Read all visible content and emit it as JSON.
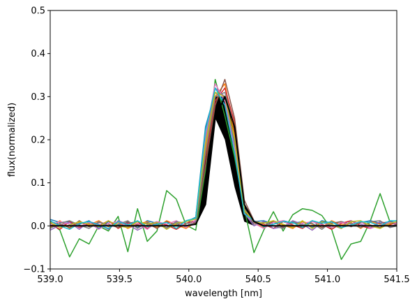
{
  "chart_data": {
    "type": "line",
    "title": "",
    "xlabel": "wavelength [nm]",
    "ylabel": "flux(normalized)",
    "xlim": [
      539.0,
      541.5
    ],
    "ylim": [
      -0.1,
      0.5
    ],
    "grid": false,
    "legend": "none",
    "x_ticks": [
      "539.0",
      "539.5",
      "540.0",
      "540.5",
      "541.0",
      "541.5"
    ],
    "y_ticks": [
      "−0.1",
      "0.0",
      "0.1",
      "0.2",
      "0.3",
      "0.4",
      "0.5"
    ],
    "x": [
      539.0,
      539.07,
      539.14,
      539.21,
      539.28,
      539.35,
      539.42,
      539.49,
      539.56,
      539.63,
      539.7,
      539.77,
      539.84,
      539.91,
      539.98,
      540.05,
      540.12,
      540.19,
      540.26,
      540.33,
      540.4,
      540.47,
      540.54,
      540.61,
      540.68,
      540.75,
      540.82,
      540.89,
      540.96,
      541.03,
      541.1,
      541.17,
      541.24,
      541.31,
      541.38,
      541.45,
      541.5
    ],
    "series": [
      {
        "color": "#2ca02c",
        "values": [
          0.008,
          -0.01,
          -0.072,
          -0.03,
          -0.042,
          0.0,
          -0.012,
          0.022,
          -0.06,
          0.04,
          -0.036,
          -0.012,
          0.082,
          0.062,
          0.002,
          -0.01,
          0.13,
          0.34,
          0.255,
          0.16,
          0.04,
          -0.062,
          -0.01,
          0.033,
          -0.012,
          0.026,
          0.04,
          0.036,
          0.024,
          -0.008,
          -0.078,
          -0.042,
          -0.036,
          0.012,
          0.075,
          0.01,
          0.008
        ]
      },
      {
        "color": "#1f77b4",
        "values": [
          0.015,
          0.008,
          0.01,
          0.004,
          0.012,
          -0.006,
          0.01,
          0.002,
          0.008,
          -0.004,
          0.012,
          0.006,
          -0.006,
          0.004,
          0.01,
          0.02,
          0.23,
          0.31,
          0.29,
          0.19,
          0.03,
          0.01,
          0.012,
          0.004,
          0.012,
          0.006,
          0.01,
          -0.004,
          0.012,
          0.006,
          0.01,
          0.004,
          0.008,
          0.012,
          0.006,
          0.01,
          0.008
        ]
      },
      {
        "color": "#ff7f0e",
        "values": [
          -0.004,
          0.012,
          -0.006,
          0.008,
          0.002,
          0.012,
          -0.002,
          0.008,
          -0.006,
          0.004,
          0.01,
          -0.004,
          0.012,
          0.002,
          -0.006,
          0.008,
          0.18,
          0.3,
          0.33,
          0.21,
          0.04,
          0.008,
          -0.004,
          0.012,
          0.002,
          -0.006,
          0.01,
          0.004,
          -0.004,
          0.012,
          0.002,
          0.008,
          -0.006,
          0.01,
          0.004,
          0.002,
          0.01
        ]
      },
      {
        "color": "#d62728",
        "values": [
          0.004,
          -0.008,
          0.01,
          -0.004,
          0.006,
          0.0,
          0.012,
          -0.006,
          0.006,
          0.01,
          -0.006,
          0.008,
          0.002,
          -0.008,
          0.006,
          0.012,
          0.16,
          0.29,
          0.32,
          0.24,
          0.05,
          0.012,
          0.004,
          -0.006,
          0.01,
          0.002,
          -0.006,
          0.01,
          0.004,
          -0.008,
          0.006,
          0.012,
          0.0,
          -0.006,
          0.01,
          0.004,
          0.006
        ]
      },
      {
        "color": "#9467bd",
        "values": [
          -0.01,
          0.002,
          0.008,
          -0.008,
          0.01,
          0.004,
          -0.008,
          0.012,
          0.004,
          -0.01,
          0.002,
          0.01,
          -0.006,
          0.008,
          0.0,
          0.01,
          0.2,
          0.32,
          0.3,
          0.2,
          0.03,
          0.0,
          0.01,
          -0.006,
          -0.002,
          0.012,
          0.004,
          -0.01,
          0.008,
          0.002,
          -0.006,
          0.012,
          0.004,
          -0.004,
          0.01,
          -0.002,
          0.004
        ]
      },
      {
        "color": "#8c564b",
        "values": [
          0.01,
          0.004,
          -0.004,
          0.012,
          -0.002,
          0.008,
          0.004,
          -0.004,
          0.01,
          0.002,
          0.006,
          -0.006,
          0.01,
          0.0,
          0.012,
          0.006,
          0.14,
          0.28,
          0.34,
          0.25,
          0.06,
          0.012,
          0.0,
          0.01,
          -0.004,
          0.008,
          0.0,
          0.012,
          -0.004,
          0.006,
          0.01,
          -0.002,
          0.008,
          0.002,
          -0.004,
          0.01,
          0.002
        ]
      },
      {
        "color": "#e377c2",
        "values": [
          0.002,
          0.01,
          0.004,
          -0.002,
          0.008,
          -0.008,
          0.006,
          0.01,
          -0.002,
          0.006,
          -0.008,
          0.01,
          0.004,
          0.012,
          -0.004,
          0.014,
          0.21,
          0.33,
          0.29,
          0.18,
          0.03,
          0.006,
          -0.006,
          0.008,
          0.012,
          -0.002,
          0.006,
          0.01,
          0.002,
          -0.004,
          0.008,
          0.004,
          0.01,
          -0.006,
          0.002,
          0.008,
          0.006
        ]
      },
      {
        "color": "#7f7f7f",
        "values": [
          -0.006,
          0.006,
          0.012,
          0.002,
          -0.006,
          0.01,
          0.0,
          0.004,
          0.012,
          -0.006,
          0.008,
          0.002,
          -0.004,
          0.01,
          0.006,
          0.004,
          0.17,
          0.3,
          0.31,
          0.23,
          0.04,
          0.004,
          0.008,
          0.0,
          -0.006,
          0.01,
          0.002,
          0.006,
          -0.008,
          0.01,
          0.0,
          0.006,
          -0.004,
          0.01,
          0.012,
          -0.004,
          0.0
        ]
      },
      {
        "color": "#bcbd22",
        "values": [
          0.008,
          -0.004,
          0.002,
          0.01,
          0.004,
          -0.002,
          0.012,
          0.0,
          -0.004,
          0.01,
          0.004,
          0.008,
          -0.008,
          0.006,
          0.01,
          0.016,
          0.19,
          0.31,
          0.3,
          0.2,
          0.036,
          0.01,
          0.006,
          0.012,
          0.004,
          -0.004,
          0.012,
          -0.006,
          0.01,
          0.004,
          -0.006,
          0.01,
          0.012,
          0.0,
          -0.006,
          0.006,
          0.01
        ]
      },
      {
        "color": "#17becf",
        "values": [
          0.012,
          0.0,
          -0.008,
          0.006,
          0.01,
          0.002,
          -0.006,
          0.01,
          0.002,
          0.012,
          -0.002,
          0.004,
          0.008,
          -0.006,
          0.012,
          0.018,
          0.22,
          0.32,
          0.28,
          0.17,
          0.028,
          0.012,
          -0.002,
          0.004,
          0.01,
          0.008,
          -0.004,
          0.012,
          0.006,
          0.01,
          -0.004,
          0.002,
          0.01,
          0.008,
          0.0,
          0.012,
          0.012
        ]
      },
      {
        "color": "#000000",
        "values": [
          0.0,
          0.0,
          0.0,
          0.0,
          0.0,
          0.0,
          0.0,
          0.0,
          0.0,
          0.0,
          0.0,
          0.0,
          0.0,
          0.0,
          0.0,
          0.004,
          0.05,
          0.25,
          0.3,
          0.23,
          0.05,
          0.01,
          0.0,
          0.0,
          0.0,
          0.0,
          0.0,
          0.0,
          0.0,
          0.0,
          0.0,
          0.0,
          0.0,
          0.0,
          0.0,
          0.0,
          0.0
        ]
      }
    ],
    "band": {
      "color": "#000000",
      "x": [
        540.05,
        540.12,
        540.19,
        540.26,
        540.33,
        540.4,
        540.47
      ],
      "lower": [
        0.0,
        0.05,
        0.25,
        0.2,
        0.09,
        0.01,
        0.0
      ],
      "upper": [
        0.03,
        0.19,
        0.3,
        0.3,
        0.23,
        0.05,
        0.01
      ]
    }
  }
}
